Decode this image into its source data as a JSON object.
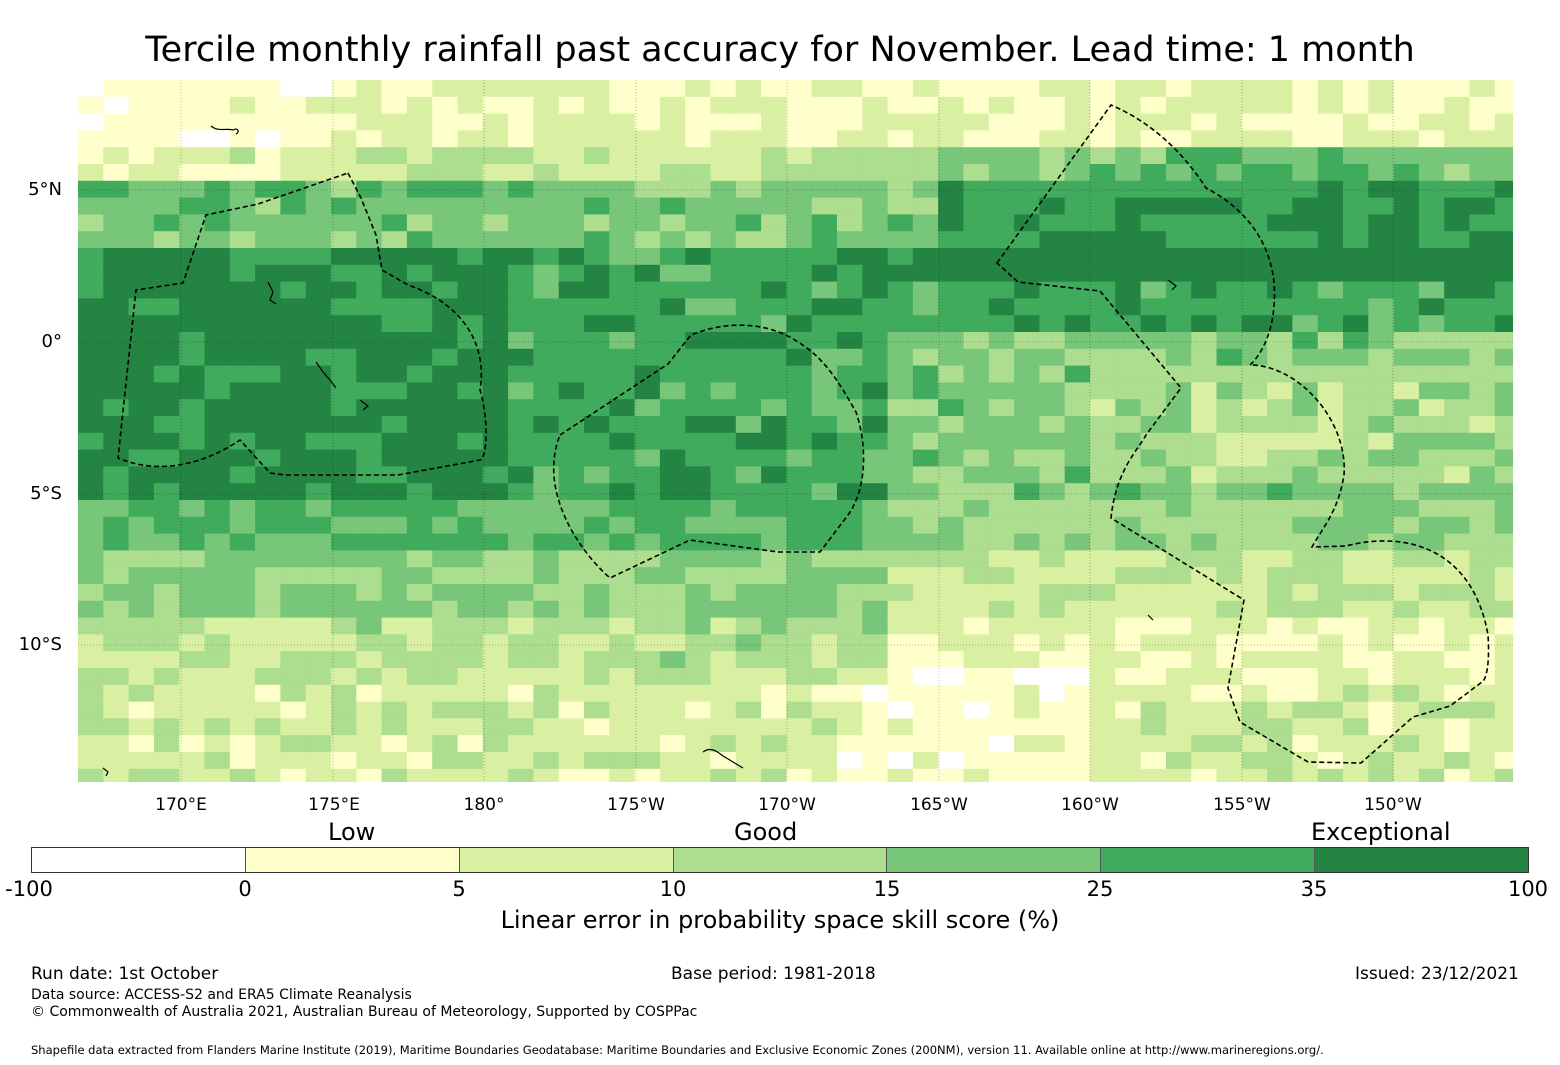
{
  "title": "Tercile monthly rainfall past accuracy for November. Lead time: 1 month",
  "map": {
    "lat_labels": [
      "5°N",
      "0°",
      "5°S",
      "10°S"
    ],
    "lon_labels": [
      "170°E",
      "175°E",
      "180°",
      "175°W",
      "170°W",
      "165°W",
      "160°W",
      "155°W",
      "150°W"
    ],
    "legend_categories": [
      "Low",
      "Good",
      "Exceptional"
    ]
  },
  "colorbar": {
    "colors": [
      "#ffffff",
      "#ffffcc",
      "#d9f0a3",
      "#addd8e",
      "#78c679",
      "#41ab5d",
      "#238443"
    ],
    "ticks": [
      "-100",
      "0",
      "5",
      "10",
      "15",
      "25",
      "35",
      "100"
    ],
    "label": "Linear error in probability space skill score (%)"
  },
  "footer": {
    "run_date": "Run date: 1st October",
    "base_period": "Base period: 1981-2018",
    "issued": "Issued: 23/12/2021",
    "data_source": "Data source: ACCESS-S2 and ERA5 Climate Reanalysis",
    "copyright": "© Commonwealth of Australia 2021, Australian Bureau of Meteorology, Supported by COSPPac",
    "shapefile_note": "Shapefile data extracted from Flanders Marine Institute (2019), Maritime Boundaries Geodatabase: Maritime Boundaries and Exclusive Economic Zones (200NM), version 11. Available online at http://www.marineregions.org/."
  }
}
